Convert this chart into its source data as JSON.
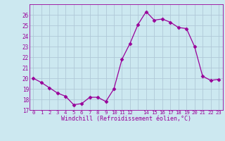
{
  "x": [
    0,
    1,
    2,
    3,
    4,
    5,
    6,
    7,
    8,
    9,
    10,
    11,
    12,
    13,
    14,
    15,
    16,
    17,
    18,
    19,
    20,
    21,
    22,
    23
  ],
  "y": [
    20.0,
    19.6,
    19.1,
    18.6,
    18.3,
    17.5,
    17.6,
    18.2,
    18.2,
    17.8,
    19.0,
    21.8,
    23.3,
    25.1,
    26.3,
    25.5,
    25.6,
    25.3,
    24.8,
    24.7,
    23.0,
    20.2,
    19.8,
    19.9
  ],
  "line_color": "#990099",
  "marker": "D",
  "marker_size": 2.5,
  "bg_color": "#cce8f0",
  "grid_color": "#b0c8d8",
  "xlabel": "Windchill (Refroidissement éolien,°C)",
  "xlabel_color": "#990099",
  "tick_color": "#990099",
  "ylim": [
    17,
    27
  ],
  "xlim": [
    -0.5,
    23.5
  ],
  "yticks": [
    17,
    18,
    19,
    20,
    21,
    22,
    23,
    24,
    25,
    26
  ],
  "xticks": [
    0,
    1,
    2,
    3,
    4,
    5,
    6,
    7,
    8,
    9,
    10,
    11,
    12,
    13,
    14,
    15,
    16,
    17,
    18,
    19,
    20,
    21,
    22,
    23
  ],
  "xtick_labels": [
    "0",
    "1",
    "2",
    "3",
    "4",
    "5",
    "6",
    "7",
    "8",
    "9",
    "10",
    "11",
    "12",
    "",
    "14",
    "15",
    "16",
    "17",
    "18",
    "19",
    "20",
    "21",
    "22",
    "23"
  ],
  "spine_color": "#990099"
}
